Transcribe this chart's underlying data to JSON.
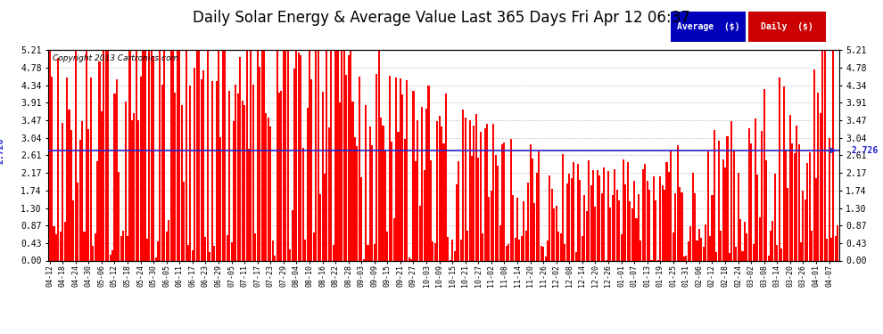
{
  "title": "Daily Solar Energy & Average Value Last 365 Days Fri Apr 12 06:37",
  "copyright": "Copyright 2013 Cartronics.com",
  "average_value": 2.726,
  "ylim": [
    0.0,
    5.21
  ],
  "yticks": [
    0.0,
    0.43,
    0.87,
    1.3,
    1.74,
    2.17,
    2.61,
    3.04,
    3.47,
    3.91,
    4.34,
    4.78,
    5.21
  ],
  "bar_color": "#FF0000",
  "avg_line_color": "#2222CC",
  "background_color": "#FFFFFF",
  "plot_bg_color": "#FFFFFF",
  "grid_color": "#AAAAAA",
  "title_fontsize": 12,
  "legend_avg_bg": "#0000BB",
  "legend_daily_bg": "#CC0000",
  "legend_text_color": "#FFFFFF",
  "x_labels": [
    "04-12",
    "04-18",
    "04-24",
    "04-30",
    "05-06",
    "05-12",
    "05-18",
    "05-24",
    "05-30",
    "06-05",
    "06-11",
    "06-17",
    "06-23",
    "06-29",
    "07-05",
    "07-11",
    "07-17",
    "07-23",
    "07-29",
    "08-04",
    "08-10",
    "08-16",
    "08-22",
    "08-28",
    "09-03",
    "09-09",
    "09-15",
    "09-21",
    "09-27",
    "10-03",
    "10-09",
    "10-15",
    "10-21",
    "10-27",
    "11-02",
    "11-08",
    "11-14",
    "11-20",
    "11-26",
    "12-02",
    "12-08",
    "12-14",
    "12-20",
    "12-26",
    "01-01",
    "01-07",
    "01-13",
    "01-19",
    "01-25",
    "01-31",
    "02-06",
    "02-12",
    "02-18",
    "02-24",
    "03-02",
    "03-08",
    "03-14",
    "03-20",
    "03-26",
    "04-01",
    "04-07"
  ],
  "num_bars": 365,
  "seed": 42
}
